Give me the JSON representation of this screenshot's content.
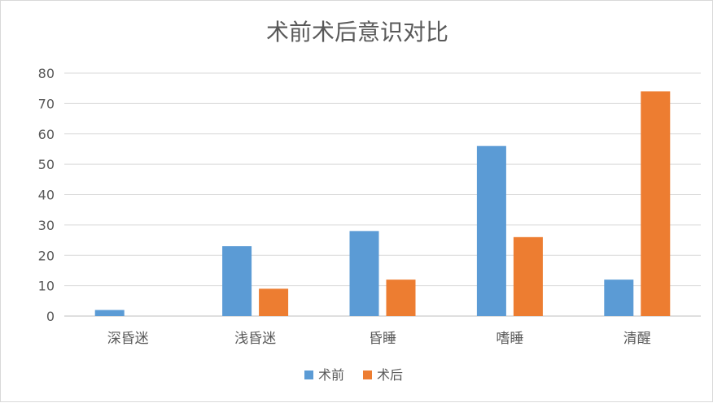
{
  "chart_data": {
    "type": "bar",
    "title": "术前术后意识对比",
    "categories": [
      "深昏迷",
      "浅昏迷",
      "昏睡",
      "嗜睡",
      "清醒"
    ],
    "series": [
      {
        "name": "术前",
        "values": [
          2,
          23,
          28,
          56,
          12
        ],
        "color": "#5b9bd5"
      },
      {
        "name": "术后",
        "values": [
          0,
          9,
          12,
          26,
          74
        ],
        "color": "#ed7d31"
      }
    ],
    "ylim": [
      0,
      80
    ],
    "yticks": [
      0,
      10,
      20,
      30,
      40,
      50,
      60,
      70,
      80
    ],
    "grid": true,
    "legend_position": "bottom"
  }
}
